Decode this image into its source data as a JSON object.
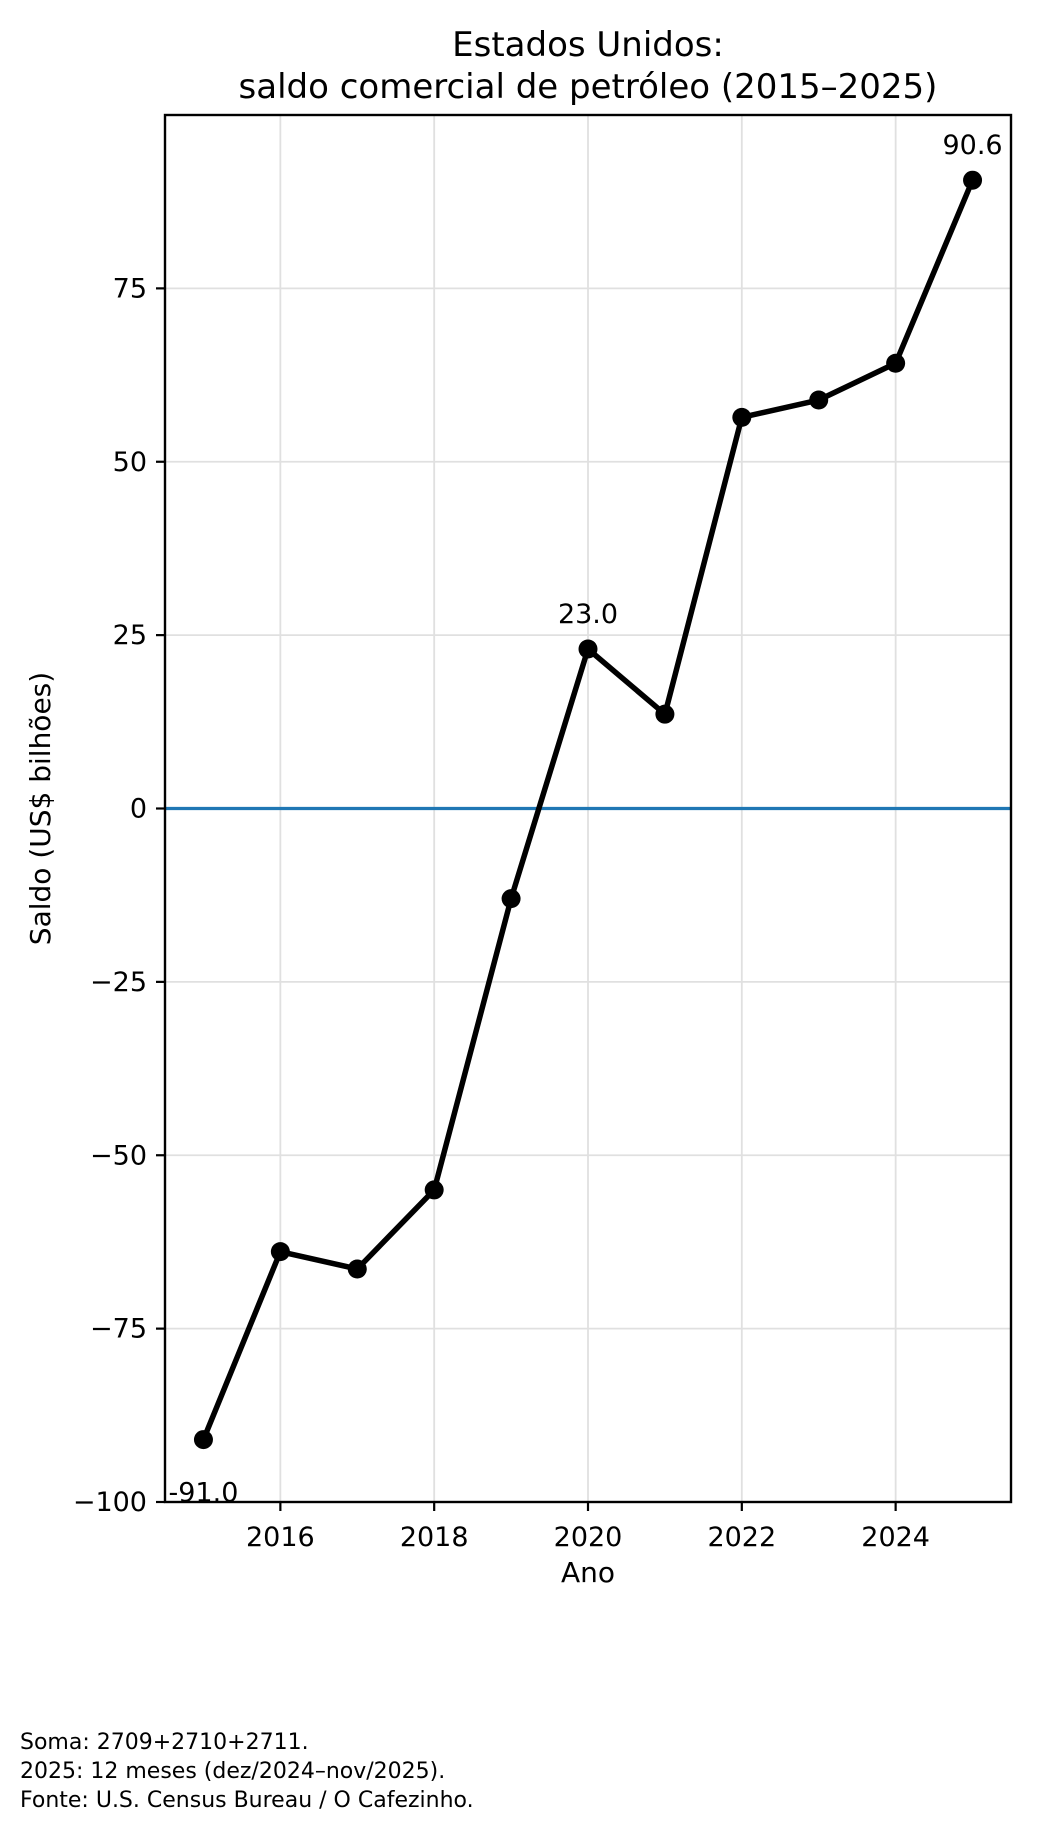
{
  "title": {
    "line1": "Estados Unidos:",
    "line2": "saldo comercial de petróleo (2015–2025)"
  },
  "chart_data": {
    "type": "line",
    "title": "Estados Unidos: saldo comercial de petróleo (2015–2025)",
    "xlabel": "Ano",
    "ylabel": "Saldo (US$ bilhões)",
    "x": [
      2015,
      2016,
      2017,
      2018,
      2019,
      2020,
      2021,
      2022,
      2023,
      2024,
      2025
    ],
    "series": [
      {
        "name": "Saldo comercial de petróleo",
        "color": "#000000",
        "values": [
          -91.0,
          -63.9,
          -66.4,
          -55.0,
          -13.0,
          23.0,
          13.6,
          56.4,
          58.9,
          64.2,
          90.6
        ]
      }
    ],
    "xlim": [
      2014.5,
      2025.5
    ],
    "ylim": [
      -100,
      100
    ],
    "xticks": [
      2016,
      2018,
      2020,
      2022,
      2024
    ],
    "xtick_labels": [
      "2016",
      "2018",
      "2020",
      "2022",
      "2024"
    ],
    "yticks": [
      75,
      50,
      25,
      0,
      -25,
      -50,
      -75,
      -100
    ],
    "ytick_labels": [
      "75",
      "50",
      "25",
      "0",
      "−25",
      "−50",
      "−75",
      "−100"
    ],
    "grid": true,
    "legend": "none",
    "zero_line": {
      "y": 0,
      "color": "#1f77b4"
    },
    "annotations": [
      {
        "x": 2015,
        "y": -91.0,
        "label": "-91.0",
        "placement": "below"
      },
      {
        "x": 2020,
        "y": 23.0,
        "label": "23.0",
        "placement": "above"
      },
      {
        "x": 2025,
        "y": 90.6,
        "label": "90.6",
        "placement": "above"
      }
    ]
  },
  "footnotes": {
    "line1": "Soma: 2709+2710+2711.",
    "line2": "2025: 12 meses (dez/2024–nov/2025).",
    "line3": "Fonte: U.S. Census Bureau / O Cafezinho."
  },
  "colors": {
    "line": "#000000",
    "marker": "#000000",
    "zero_line": "#1f77b4",
    "grid": "#e0e0e0",
    "spine": "#000000",
    "text": "#000000",
    "background": "#ffffff"
  }
}
